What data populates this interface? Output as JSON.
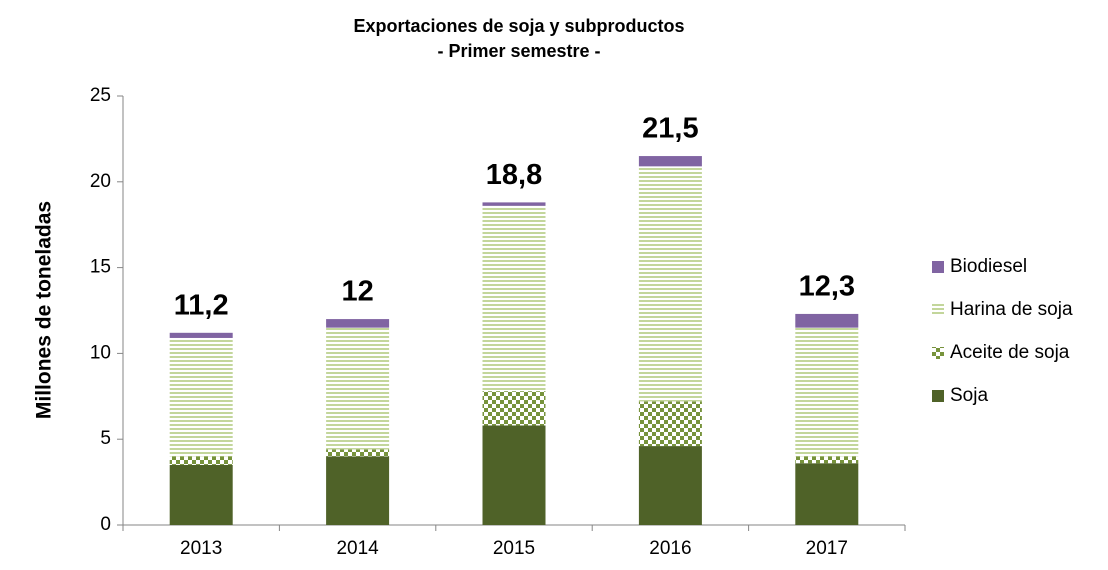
{
  "chart_data": {
    "type": "stacked_bar",
    "title": "Exportaciones de soja y subproductos",
    "subtitle": "- Primer semestre -",
    "ylabel": "Millones de toneladas",
    "categories": [
      "2013",
      "2014",
      "2015",
      "2016",
      "2017"
    ],
    "series": [
      {
        "name": "Soja",
        "color": "#4f6228",
        "pattern": "solid",
        "values": [
          3.5,
          4.0,
          5.8,
          4.6,
          3.6
        ]
      },
      {
        "name": "Aceite de soja",
        "color": "#77933c",
        "pattern": "checker",
        "values": [
          0.5,
          0.4,
          2.0,
          2.6,
          0.4
        ]
      },
      {
        "name": "Harina de soja",
        "color": "#c3d69b",
        "pattern": "hstripes",
        "values": [
          6.9,
          7.1,
          10.8,
          13.7,
          7.5
        ]
      },
      {
        "name": "Biodiesel",
        "color": "#8064a2",
        "pattern": "solid",
        "values": [
          0.3,
          0.5,
          0.2,
          0.6,
          0.8
        ]
      }
    ],
    "totals": {
      "values": [
        11.2,
        12,
        18.8,
        21.5,
        12.3
      ],
      "value_labels": [
        "11,2",
        "12",
        "18,8",
        "21,5",
        "12,3"
      ]
    },
    "ylim": [
      0,
      25
    ],
    "yticks": [
      0,
      5,
      10,
      15,
      20,
      25
    ],
    "grid": false,
    "legend": "right"
  }
}
